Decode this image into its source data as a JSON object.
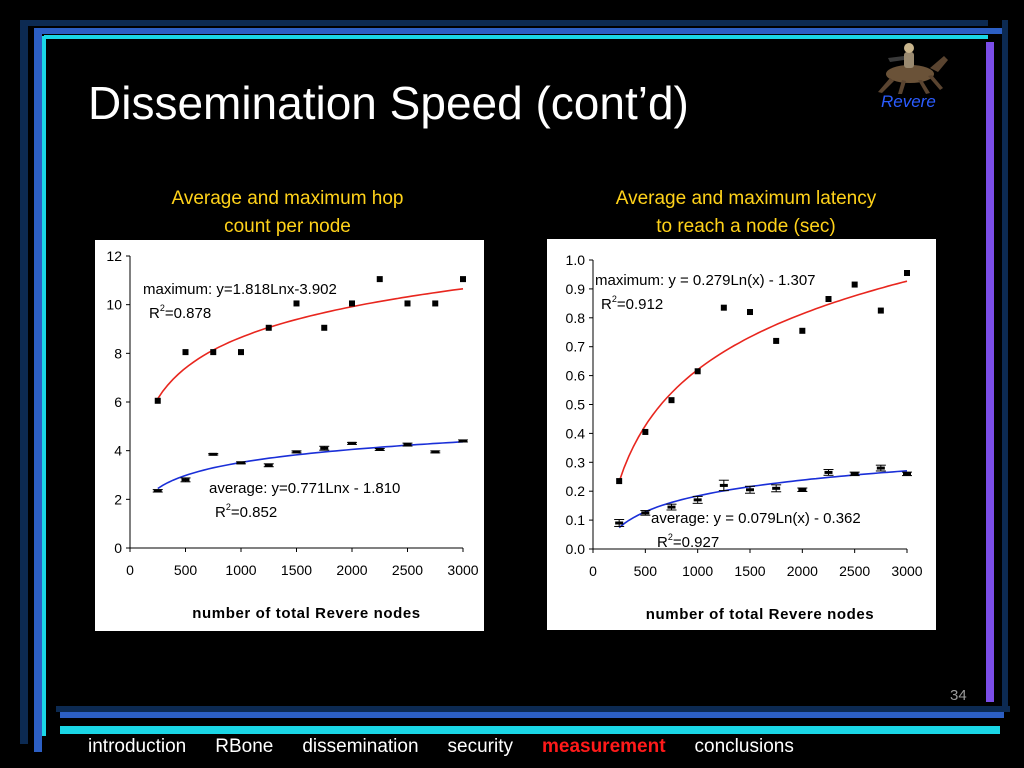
{
  "slide": {
    "title": "Dissemination Speed (cont’d)",
    "logo_text": "Revere",
    "slide_number": "34"
  },
  "nav": {
    "items": [
      {
        "label": "introduction",
        "active": false
      },
      {
        "label": "RBone",
        "active": false
      },
      {
        "label": "dissemination",
        "active": false
      },
      {
        "label": "security",
        "active": false
      },
      {
        "label": "measurement",
        "active": true
      },
      {
        "label": "conclusions",
        "active": false
      }
    ]
  },
  "colors": {
    "title": "#ffffff",
    "caption": "#ffd21a",
    "nav_active": "#ff1a1a",
    "max_fit": "#e8261e",
    "avg_fit": "#1a2fd8",
    "frame_cyan": "#1ad6e6",
    "frame_blue": "#2c5fc4",
    "frame_purple": "#7b4de8"
  },
  "chart_data": [
    {
      "type": "scatter",
      "title": "Average and maximum hop count per node",
      "title_lines": [
        "Average and maximum hop",
        "count per node"
      ],
      "xlabel": "number of total Revere nodes",
      "ylabel": "",
      "xlim": [
        0,
        3000
      ],
      "ylim": [
        0,
        12
      ],
      "xticks": [
        "0",
        "500",
        "1000",
        "1500",
        "2000",
        "2500",
        "3000"
      ],
      "yticks": [
        "0",
        "2",
        "4",
        "6",
        "8",
        "10",
        "12"
      ],
      "grid": false,
      "series": [
        {
          "role": "maximum",
          "x": [
            250,
            500,
            750,
            1000,
            1250,
            1500,
            1750,
            2000,
            2250,
            2500,
            2750,
            3000
          ],
          "values": [
            6.05,
            8.05,
            8.05,
            8.05,
            9.05,
            10.05,
            9.05,
            10.05,
            11.05,
            10.05,
            10.05,
            11.05
          ]
        },
        {
          "role": "average",
          "x": [
            250,
            500,
            750,
            1000,
            1250,
            1500,
            1750,
            2000,
            2250,
            2500,
            2750,
            3000
          ],
          "values": [
            2.35,
            2.8,
            3.85,
            3.5,
            3.4,
            3.95,
            4.1,
            4.3,
            4.05,
            4.25,
            3.95,
            4.4
          ],
          "error": [
            0.05,
            0.08,
            0.03,
            0.04,
            0.06,
            0.04,
            0.08,
            0.04,
            0.04,
            0.06,
            0.04,
            0.04
          ]
        }
      ],
      "fits": [
        {
          "role": "maximum",
          "a": 1.818,
          "b": -3.902,
          "x_range": [
            250,
            3000
          ]
        },
        {
          "role": "average",
          "a": 0.771,
          "b": -1.81,
          "x_range": [
            250,
            3000
          ]
        }
      ],
      "annotations": [
        {
          "line1": "maximum: y=1.818Lnx-3.902",
          "r2": "=0.878"
        },
        {
          "line1": "average: y=0.771Lnx - 1.810",
          "r2": "=0.852"
        }
      ]
    },
    {
      "type": "scatter",
      "title": "Average and maximum latency to reach a node (sec)",
      "title_lines": [
        "Average and maximum latency",
        "to reach a node (sec)"
      ],
      "xlabel": "number of total Revere nodes",
      "ylabel": "",
      "xlim": [
        0,
        3000
      ],
      "ylim": [
        0,
        1.0
      ],
      "xticks": [
        "0",
        "500",
        "1000",
        "1500",
        "2000",
        "2500",
        "3000"
      ],
      "yticks": [
        "0.0",
        "0.1",
        "0.2",
        "0.3",
        "0.4",
        "0.5",
        "0.6",
        "0.7",
        "0.8",
        "0.9",
        "1.0"
      ],
      "grid": false,
      "series": [
        {
          "role": "maximum",
          "x": [
            250,
            500,
            750,
            1000,
            1250,
            1500,
            1750,
            2000,
            2250,
            2500,
            2750,
            3000
          ],
          "values": [
            0.235,
            0.405,
            0.515,
            0.615,
            0.835,
            0.82,
            0.72,
            0.755,
            0.865,
            0.915,
            0.825,
            0.955
          ]
        },
        {
          "role": "average",
          "x": [
            250,
            500,
            750,
            1000,
            1250,
            1500,
            1750,
            2000,
            2250,
            2500,
            2750,
            3000
          ],
          "values": [
            0.09,
            0.125,
            0.145,
            0.17,
            0.22,
            0.205,
            0.21,
            0.205,
            0.265,
            0.26,
            0.28,
            0.26
          ],
          "error": [
            0.012,
            0.008,
            0.01,
            0.012,
            0.018,
            0.012,
            0.012,
            0.006,
            0.01,
            0.006,
            0.01,
            0.006
          ]
        }
      ],
      "fits": [
        {
          "role": "maximum",
          "a": 0.279,
          "b": -1.307,
          "x_range": [
            250,
            3000
          ]
        },
        {
          "role": "average",
          "a": 0.079,
          "b": -0.362,
          "x_range": [
            250,
            3000
          ]
        }
      ],
      "annotations": [
        {
          "line1": "maximum: y = 0.279Ln(x) - 1.307",
          "r2": "=0.912"
        },
        {
          "line1": "average: y = 0.079Ln(x) - 0.362",
          "r2": "=0.927"
        }
      ]
    }
  ]
}
